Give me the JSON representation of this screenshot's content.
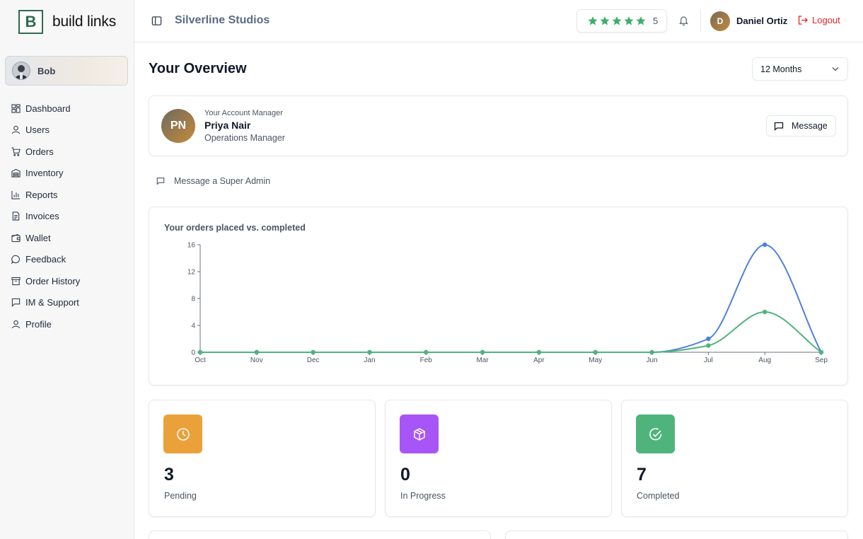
{
  "brand": {
    "mark": "B",
    "name": "build links"
  },
  "sidebar": {
    "user": {
      "name": "Bob"
    },
    "items": [
      {
        "label": "Dashboard",
        "icon": "dashboard-icon"
      },
      {
        "label": "Users",
        "icon": "user-icon"
      },
      {
        "label": "Orders",
        "icon": "cart-icon"
      },
      {
        "label": "Inventory",
        "icon": "warehouse-icon"
      },
      {
        "label": "Reports",
        "icon": "bar-chart-icon"
      },
      {
        "label": "Invoices",
        "icon": "file-icon"
      },
      {
        "label": "Wallet",
        "icon": "wallet-icon"
      },
      {
        "label": "Feedback",
        "icon": "message-circle-icon"
      },
      {
        "label": "Order History",
        "icon": "archive-icon"
      },
      {
        "label": "IM & Support",
        "icon": "message-square-icon"
      },
      {
        "label": "Profile",
        "icon": "user-icon"
      }
    ]
  },
  "header": {
    "company": "Silverline Studios",
    "rating": {
      "stars": 5,
      "value": "5",
      "color": "#3fae6a"
    },
    "user": {
      "initial": "D",
      "name": "Daniel Ortiz"
    },
    "logout_label": "Logout"
  },
  "main": {
    "title": "Your Overview",
    "period": "12 Months",
    "manager": {
      "initials": "PN",
      "caption": "Your Account Manager",
      "name": "Priya Nair",
      "role": "Operations Manager",
      "message_label": "Message"
    },
    "super_admin_label": "Message a Super Admin",
    "stats": [
      {
        "value": "3",
        "label": "Pending",
        "color": "#eba13a",
        "icon": "clock-icon"
      },
      {
        "value": "0",
        "label": "In Progress",
        "color": "#a855f7",
        "icon": "box-icon"
      },
      {
        "value": "7",
        "label": "Completed",
        "color": "#4fb47c",
        "icon": "check-circle-icon"
      }
    ]
  },
  "chart_data": {
    "type": "line",
    "title": "Your orders placed vs. completed",
    "categories": [
      "Oct",
      "Nov",
      "Dec",
      "Jan",
      "Feb",
      "Mar",
      "Apr",
      "May",
      "Jun",
      "Jul",
      "Aug",
      "Sep"
    ],
    "series": [
      {
        "color": "#4f7fe0",
        "values": [
          0,
          0,
          0,
          0,
          0,
          0,
          0,
          0,
          0,
          2,
          16,
          0
        ]
      },
      {
        "color": "#4fb47c",
        "values": [
          0,
          0,
          0,
          0,
          0,
          0,
          0,
          0,
          0,
          1,
          6,
          0
        ]
      }
    ],
    "yticks": [
      0,
      4,
      8,
      12,
      16
    ],
    "ylim": [
      0,
      16
    ],
    "grid": false,
    "legend": "none"
  }
}
